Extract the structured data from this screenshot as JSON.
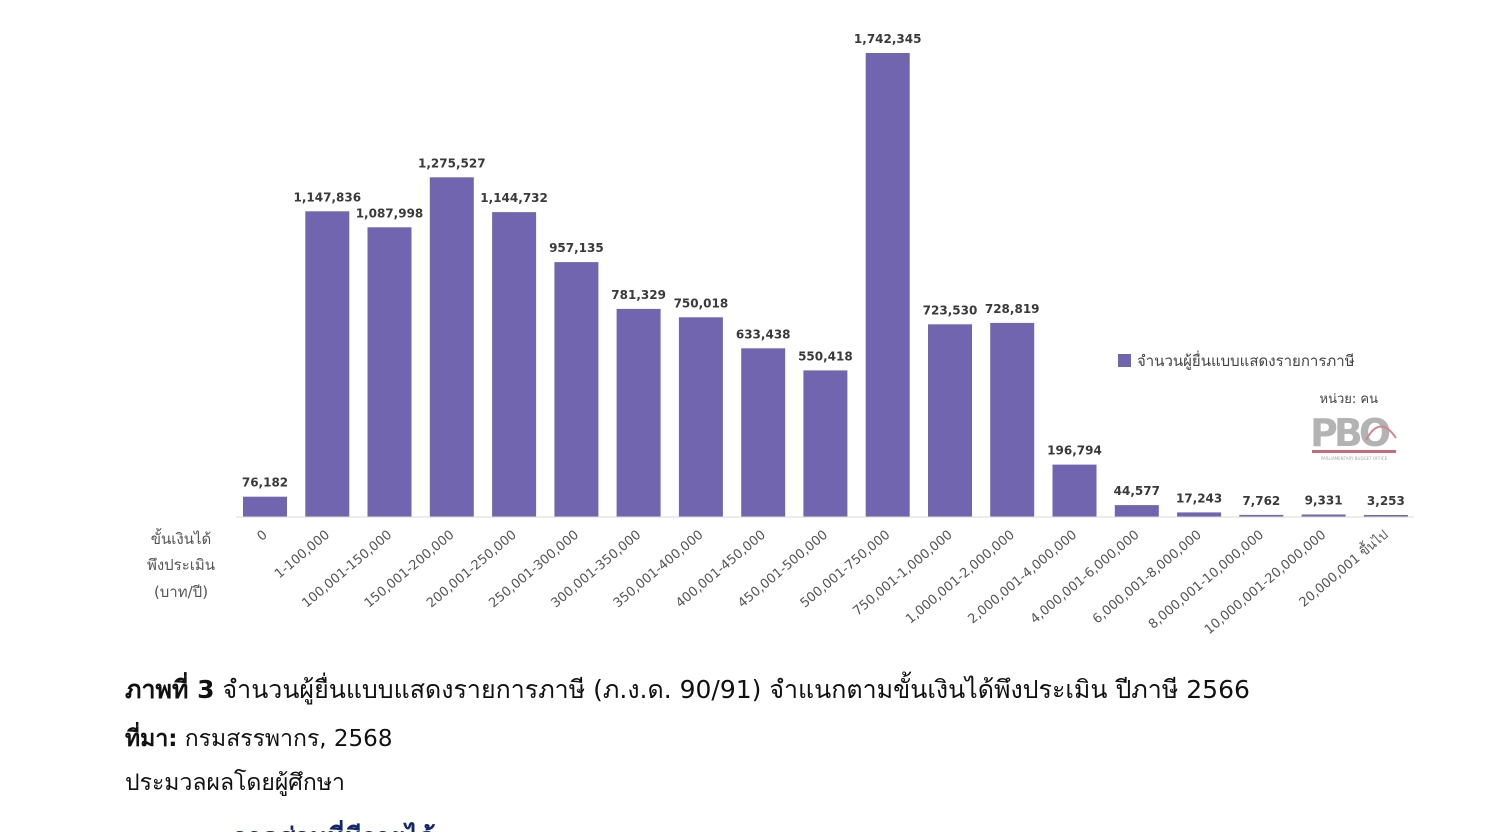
{
  "chart_data": {
    "type": "bar",
    "categories": [
      "0",
      "1-100,000",
      "100,001-150,000",
      "150,001-200,000",
      "200,001-250,000",
      "250,001-300,000",
      "300,001-350,000",
      "350,001-400,000",
      "400,001-450,000",
      "450,001-500,000",
      "500,001-750,000",
      "750,001-1,000,000",
      "1,000,001-2,000,000",
      "2,000,001-4,000,000",
      "4,000,001-6,000,000",
      "6,000,001-8,000,000",
      "8,000,001-10,000,000",
      "10,000,001-20,000,000",
      "20,000,001 ขึ้นไป"
    ],
    "values": [
      76182,
      1147836,
      1087998,
      1275527,
      1144732,
      957135,
      781329,
      750018,
      633438,
      550418,
      1742345,
      723530,
      728819,
      196794,
      44577,
      17243,
      7762,
      9331,
      3253
    ],
    "value_labels": [
      "76,182",
      "1,147,836",
      "1,087,998",
      "1,275,527",
      "1,144,732",
      "957,135",
      "781,329",
      "750,018",
      "633,438",
      "550,418",
      "1,742,345",
      "723,530",
      "728,819",
      "196,794",
      "44,577",
      "17,243",
      "7,762",
      "9,331",
      "3,253"
    ],
    "series": [
      {
        "name": "จำนวนผู้ยื่นแบบแสดงรายการภาษี"
      }
    ],
    "xlabel_lines": [
      "ขั้นเงินได้",
      "พึงประเมิน",
      "(บาท/ปี)"
    ],
    "unit_label": "หน่วย: คน",
    "ylim": [
      0,
      1742345
    ],
    "grid": false,
    "legend_position": "right",
    "bar_color": "#7165b0"
  },
  "caption": {
    "label": "ภาพที่ 3",
    "text": "จำนวนผู้ยื่นแบบแสดงรายการภาษี (ภ.ง.ด. 90/91) จำแนกตามขั้นเงินได้พึงประเมิน ปีภาษี 2566"
  },
  "source": {
    "label": "ที่มา:",
    "text": "กรมสรรพากร, 2568"
  },
  "processed": "ประมวลผลโดยผู้ศึกษา",
  "logo": {
    "text": "PBO",
    "subtext": "PARLIAMENTARY BUDGET OFFICE"
  },
  "next_heading_fragment": "ภาคส่วนที่มีรายได้"
}
